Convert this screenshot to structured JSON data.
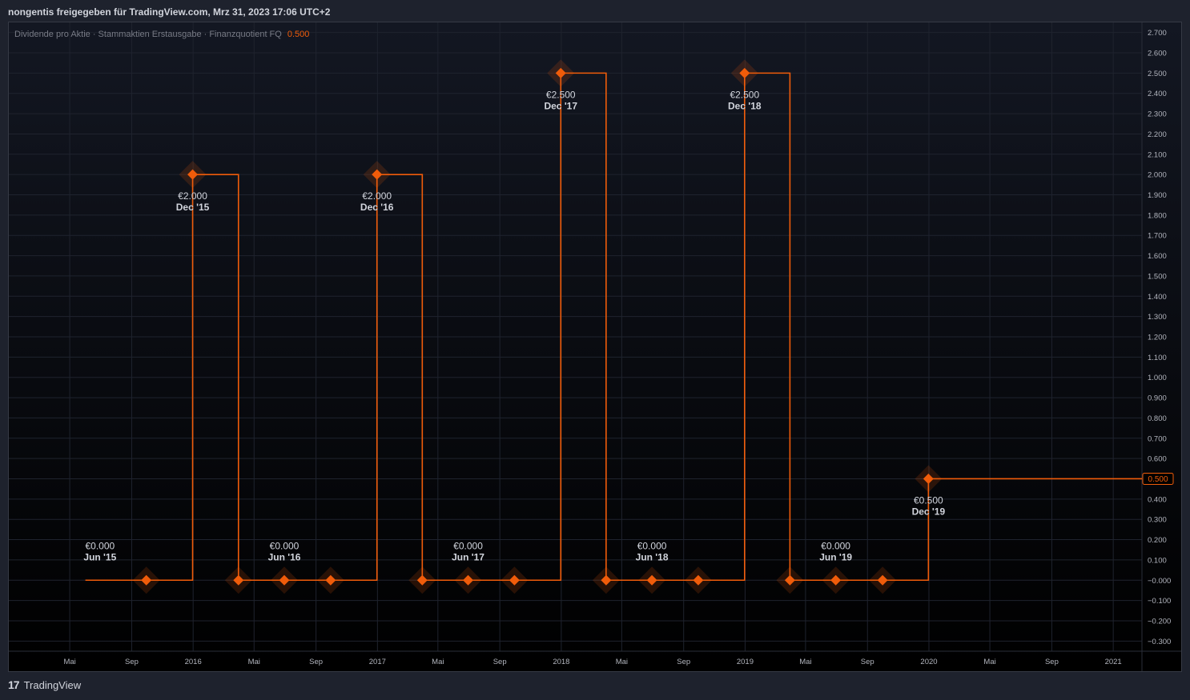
{
  "header": {
    "title": "nongentis freigegeben für TradingView.com, Mrz 31, 2023 17:06 UTC+2"
  },
  "footer": {
    "brand": "TradingView",
    "logo_glyph": "17"
  },
  "colors": {
    "accent": "#f05c0a",
    "label": "#d1d4dc",
    "muted": "#787b86",
    "grid": "#1f232e"
  },
  "chart_data": {
    "type": "line",
    "step": true,
    "legend": {
      "text": "Dividende pro Aktie · Stammaktien Erstausgabe · Finanzquotient FQ",
      "value": "0.500"
    },
    "last_value_label": "0.500",
    "ylim": [
      -0.35,
      2.75
    ],
    "y_ticks": [
      2.7,
      2.6,
      2.5,
      2.4,
      2.3,
      2.2,
      2.1,
      2.0,
      1.9,
      1.8,
      1.7,
      1.6,
      1.5,
      1.4,
      1.3,
      1.2,
      1.1,
      1.0,
      0.9,
      0.8,
      0.7,
      0.6,
      0.5,
      0.4,
      0.3,
      0.2,
      0.1,
      0.0,
      -0.1,
      -0.2,
      -0.3
    ],
    "y_tick_labels": [
      "2.700",
      "2.600",
      "2.500",
      "2.400",
      "2.300",
      "2.200",
      "2.100",
      "2.000",
      "1.900",
      "1.800",
      "1.700",
      "1.600",
      "1.500",
      "1.400",
      "1.300",
      "1.200",
      "1.100",
      "1.000",
      "0.900",
      "0.800",
      "0.700",
      "0.600",
      "0.500",
      "0.400",
      "0.300",
      "0.200",
      "0.100",
      "−0.000",
      "−0.100",
      "−0.200",
      "−0.300"
    ],
    "xlim": [
      "2014-12-31",
      "2021-02-27"
    ],
    "x_ticks": [
      {
        "date": "2015-05-01",
        "label": "Mai"
      },
      {
        "date": "2015-09-01",
        "label": "Sep"
      },
      {
        "date": "2016-01-01",
        "label": "2016"
      },
      {
        "date": "2016-05-01",
        "label": "Mai"
      },
      {
        "date": "2016-09-01",
        "label": "Sep"
      },
      {
        "date": "2017-01-01",
        "label": "2017"
      },
      {
        "date": "2017-05-01",
        "label": "Mai"
      },
      {
        "date": "2017-09-01",
        "label": "Sep"
      },
      {
        "date": "2018-01-01",
        "label": "2018"
      },
      {
        "date": "2018-05-01",
        "label": "Mai"
      },
      {
        "date": "2018-09-01",
        "label": "Sep"
      },
      {
        "date": "2019-01-01",
        "label": "2019"
      },
      {
        "date": "2019-05-01",
        "label": "Mai"
      },
      {
        "date": "2019-09-01",
        "label": "Sep"
      },
      {
        "date": "2020-01-01",
        "label": "2020"
      },
      {
        "date": "2020-05-01",
        "label": "Mai"
      },
      {
        "date": "2020-09-01",
        "label": "Sep"
      },
      {
        "date": "2021-01-01",
        "label": "2021"
      }
    ],
    "series_start": "2015-06-01",
    "series_end": "2021-02-27",
    "points": [
      {
        "date": "2015-09-30",
        "value": 0.0
      },
      {
        "date": "2015-12-31",
        "value": 2.0
      },
      {
        "date": "2016-03-31",
        "value": 0.0
      },
      {
        "date": "2016-06-30",
        "value": 0.0
      },
      {
        "date": "2016-09-30",
        "value": 0.0
      },
      {
        "date": "2016-12-31",
        "value": 2.0
      },
      {
        "date": "2017-03-31",
        "value": 0.0
      },
      {
        "date": "2017-06-30",
        "value": 0.0
      },
      {
        "date": "2017-09-30",
        "value": 0.0
      },
      {
        "date": "2017-12-31",
        "value": 2.5
      },
      {
        "date": "2018-03-31",
        "value": 0.0
      },
      {
        "date": "2018-06-30",
        "value": 0.0
      },
      {
        "date": "2018-09-30",
        "value": 0.0
      },
      {
        "date": "2018-12-31",
        "value": 2.5
      },
      {
        "date": "2019-03-31",
        "value": 0.0
      },
      {
        "date": "2019-06-30",
        "value": 0.0
      },
      {
        "date": "2019-10-01",
        "value": 0.0
      },
      {
        "date": "2019-12-31",
        "value": 0.5
      }
    ],
    "annotations": [
      {
        "date": "2015-06-30",
        "value": 0.0,
        "text": "€0.000",
        "period": "Jun '15",
        "place": "above"
      },
      {
        "date": "2015-12-31",
        "value": 2.0,
        "text": "€2.000",
        "period": "Dec '15",
        "place": "below"
      },
      {
        "date": "2016-06-30",
        "value": 0.0,
        "text": "€0.000",
        "period": "Jun '16",
        "place": "above"
      },
      {
        "date": "2016-12-31",
        "value": 2.0,
        "text": "€2.000",
        "period": "Dec '16",
        "place": "below"
      },
      {
        "date": "2017-06-30",
        "value": 0.0,
        "text": "€0.000",
        "period": "Jun '17",
        "place": "above"
      },
      {
        "date": "2017-12-31",
        "value": 2.5,
        "text": "€2.500",
        "period": "Dec '17",
        "place": "below"
      },
      {
        "date": "2018-06-30",
        "value": 0.0,
        "text": "€0.000",
        "period": "Jun '18",
        "place": "above"
      },
      {
        "date": "2018-12-31",
        "value": 2.5,
        "text": "€2.500",
        "period": "Dec '18",
        "place": "below"
      },
      {
        "date": "2019-06-30",
        "value": 0.0,
        "text": "€0.000",
        "period": "Jun '19",
        "place": "above"
      },
      {
        "date": "2019-12-31",
        "value": 0.5,
        "text": "€0.500",
        "period": "Dec '19",
        "place": "below"
      }
    ]
  }
}
